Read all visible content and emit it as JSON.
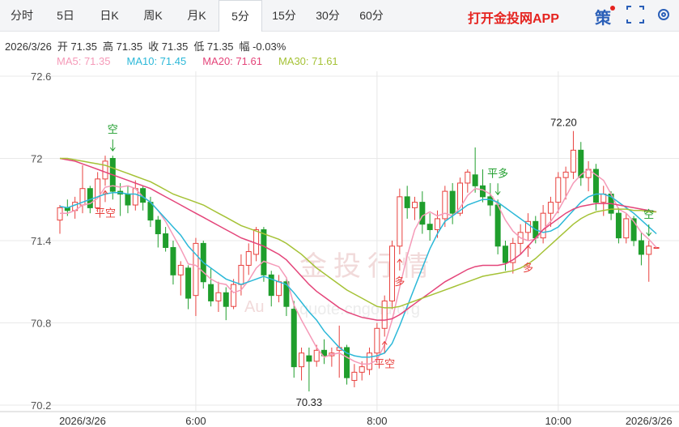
{
  "tabs": [
    "分时",
    "5日",
    "日K",
    "周K",
    "月K",
    "5分",
    "15分",
    "30分",
    "60分"
  ],
  "selected_tab": "5分",
  "app_link": "打开金投网APP",
  "toolbar_icon": "策",
  "info": [
    "2026/3/26",
    "开 71.35",
    "高 71.35",
    "收 71.35",
    "低 71.35",
    "幅 -0.03%"
  ],
  "watermark": [
    "金投行情",
    "Au",
    "quote.cngold.org"
  ],
  "chart_data": {
    "type": "candlestick",
    "categories": [
      null,
      null,
      null,
      "2026/3/26",
      null,
      null,
      null,
      null,
      null,
      null,
      null,
      null,
      null,
      null,
      null,
      null,
      null,
      null,
      "6:00",
      null,
      null,
      null,
      null,
      null,
      null,
      null,
      null,
      null,
      null,
      null,
      null,
      null,
      null,
      null,
      null,
      null,
      null,
      null,
      null,
      null,
      null,
      null,
      "8:00",
      null,
      null,
      null,
      null,
      null,
      null,
      null,
      null,
      null,
      null,
      null,
      null,
      null,
      null,
      null,
      null,
      null,
      null,
      null,
      null,
      null,
      null,
      null,
      "10:00",
      null,
      null,
      null,
      null,
      null,
      null,
      null,
      null,
      null,
      null,
      null,
      "2026/3/26",
      null
    ],
    "open": [
      71.55,
      71.64,
      71.62,
      71.66,
      71.78,
      71.64,
      71.85,
      72.0,
      71.76,
      71.74,
      71.66,
      71.78,
      71.68,
      71.55,
      71.45,
      71.35,
      71.15,
      71.2,
      71.0,
      71.38,
      71.08,
      70.96,
      71.02,
      70.92,
      71.08,
      71.22,
      71.3,
      71.48,
      71.15,
      71.0,
      71.1,
      70.9,
      70.48,
      70.56,
      70.52,
      70.6,
      70.56,
      70.6,
      70.62,
      70.38,
      70.44,
      70.46,
      70.58,
      70.76,
      70.96,
      71.36,
      71.72,
      71.64,
      71.68,
      71.52,
      71.48,
      71.56,
      71.76,
      71.6,
      71.82,
      71.88,
      71.8,
      71.72,
      71.66,
      71.36,
      71.24,
      71.38,
      71.46,
      71.54,
      71.42,
      71.6,
      71.68,
      71.86,
      71.9,
      72.06,
      71.86,
      71.92,
      71.68,
      71.74,
      71.6,
      71.42,
      71.56,
      71.4,
      71.3,
      71.35
    ],
    "high": [
      71.66,
      71.7,
      71.72,
      71.95,
      71.8,
      71.9,
      72.02,
      72.02,
      71.82,
      71.8,
      71.84,
      71.8,
      71.72,
      71.58,
      71.5,
      71.4,
      71.25,
      71.22,
      71.42,
      71.4,
      71.2,
      71.1,
      71.06,
      71.12,
      71.3,
      71.38,
      71.5,
      71.5,
      71.18,
      71.15,
      71.12,
      70.96,
      70.62,
      70.62,
      70.64,
      70.68,
      70.62,
      70.78,
      70.64,
      70.5,
      70.52,
      70.62,
      70.8,
      71.0,
      71.4,
      71.78,
      71.8,
      71.72,
      71.76,
      71.6,
      71.62,
      71.8,
      71.82,
      71.86,
      71.92,
      72.08,
      71.92,
      71.82,
      71.7,
      71.4,
      71.42,
      71.52,
      71.6,
      71.58,
      71.66,
      71.72,
      71.9,
      71.94,
      72.2,
      72.12,
      71.98,
      71.96,
      71.8,
      71.76,
      71.64,
      71.6,
      71.58,
      71.46,
      71.4,
      71.35
    ],
    "low": [
      71.45,
      71.58,
      71.56,
      71.6,
      71.6,
      71.62,
      71.8,
      71.7,
      71.58,
      71.6,
      71.62,
      71.62,
      71.5,
      71.35,
      71.32,
      71.08,
      71.0,
      70.9,
      70.85,
      71.05,
      70.92,
      70.88,
      70.82,
      70.9,
      71.0,
      71.15,
      71.25,
      71.1,
      70.92,
      70.95,
      70.85,
      70.4,
      70.38,
      70.3,
      70.48,
      70.5,
      70.48,
      70.4,
      70.35,
      70.33,
      70.38,
      70.42,
      70.52,
      70.7,
      70.9,
      71.3,
      71.56,
      71.55,
      71.45,
      71.4,
      71.42,
      71.5,
      71.52,
      71.58,
      71.75,
      71.75,
      71.68,
      71.58,
      71.3,
      71.18,
      71.16,
      71.3,
      71.4,
      71.38,
      71.38,
      71.5,
      71.6,
      71.7,
      71.85,
      71.8,
      71.76,
      71.62,
      71.58,
      71.55,
      71.38,
      71.38,
      71.36,
      71.22,
      71.1,
      71.35
    ],
    "close": [
      71.64,
      71.62,
      71.68,
      71.78,
      71.64,
      71.85,
      71.98,
      71.76,
      71.74,
      71.66,
      71.78,
      71.68,
      71.55,
      71.45,
      71.35,
      71.15,
      71.22,
      70.98,
      71.38,
      71.1,
      70.96,
      71.02,
      70.92,
      71.08,
      71.22,
      71.32,
      71.48,
      71.15,
      71.0,
      71.1,
      70.92,
      70.48,
      70.58,
      70.52,
      70.6,
      70.56,
      70.58,
      70.62,
      70.4,
      70.44,
      70.48,
      70.58,
      70.76,
      70.96,
      71.36,
      71.72,
      71.64,
      71.68,
      71.52,
      71.48,
      71.56,
      71.76,
      71.6,
      71.82,
      71.9,
      71.8,
      71.72,
      71.66,
      71.36,
      71.24,
      71.38,
      71.46,
      71.54,
      71.42,
      71.6,
      71.68,
      71.86,
      71.9,
      72.06,
      71.86,
      71.92,
      71.68,
      71.74,
      71.6,
      71.42,
      71.56,
      71.4,
      71.3,
      71.36,
      71.35
    ],
    "up_color": "#e8413e",
    "down_color": "#1f9e2c",
    "series": [
      {
        "label": "MA5: 71.35",
        "color": "#f59ab8",
        "values": [
          71.6,
          71.6,
          71.62,
          71.66,
          71.67,
          71.71,
          71.79,
          71.8,
          71.79,
          71.8,
          71.78,
          71.72,
          71.68,
          71.62,
          71.54,
          71.44,
          71.34,
          71.23,
          71.22,
          71.17,
          71.12,
          71.09,
          71.08,
          71.02,
          71.04,
          71.11,
          71.2,
          71.25,
          71.23,
          71.21,
          71.13,
          70.93,
          70.82,
          70.72,
          70.62,
          70.55,
          70.57,
          70.58,
          70.55,
          70.52,
          70.5,
          70.5,
          70.53,
          70.64,
          70.82,
          71.06,
          71.29,
          71.48,
          71.58,
          71.61,
          71.58,
          71.6,
          71.58,
          71.64,
          71.73,
          71.78,
          71.77,
          71.74,
          71.66,
          71.55,
          71.47,
          71.42,
          71.4,
          71.41,
          71.48,
          71.54,
          71.62,
          71.72,
          71.82,
          71.88,
          71.92,
          71.88,
          71.84,
          71.74,
          71.63,
          71.6,
          71.54,
          71.46,
          71.41,
          71.35
        ]
      },
      {
        "label": "MA10: 71.45",
        "color": "#2bb8d8",
        "values": [
          71.65,
          71.64,
          71.66,
          71.68,
          71.7,
          71.72,
          71.74,
          71.75,
          71.75,
          71.74,
          71.74,
          71.72,
          71.68,
          71.62,
          71.56,
          71.5,
          71.44,
          71.36,
          71.3,
          71.24,
          71.2,
          71.16,
          71.12,
          71.1,
          71.08,
          71.1,
          71.12,
          71.14,
          71.12,
          71.1,
          71.08,
          71.02,
          70.95,
          70.88,
          70.82,
          70.74,
          70.68,
          70.62,
          70.58,
          70.56,
          70.55,
          70.55,
          70.56,
          70.58,
          70.65,
          70.78,
          70.92,
          71.06,
          71.2,
          71.34,
          71.45,
          71.54,
          71.58,
          71.62,
          71.66,
          71.68,
          71.7,
          71.7,
          71.68,
          71.64,
          71.6,
          71.56,
          71.52,
          71.48,
          71.46,
          71.47,
          71.5,
          71.56,
          71.62,
          71.68,
          71.72,
          71.74,
          71.74,
          71.72,
          71.68,
          71.64,
          71.6,
          71.55,
          71.5,
          71.45
        ]
      },
      {
        "label": "MA20: 71.61",
        "color": "#e4457a",
        "values": [
          72.0,
          71.99,
          71.98,
          71.96,
          71.94,
          71.92,
          71.9,
          71.88,
          71.86,
          71.84,
          71.82,
          71.8,
          71.78,
          71.75,
          71.72,
          71.69,
          71.66,
          71.63,
          71.6,
          71.57,
          71.54,
          71.51,
          71.48,
          71.45,
          71.42,
          71.4,
          71.38,
          71.36,
          71.33,
          71.3,
          71.26,
          71.2,
          71.14,
          71.08,
          71.03,
          70.99,
          70.95,
          70.91,
          70.88,
          70.86,
          70.84,
          70.83,
          70.82,
          70.82,
          70.83,
          70.86,
          70.9,
          70.94,
          70.98,
          71.02,
          71.06,
          71.1,
          71.13,
          71.16,
          71.19,
          71.21,
          71.22,
          71.22,
          71.22,
          71.23,
          71.26,
          71.3,
          71.36,
          71.42,
          71.48,
          71.52,
          71.56,
          71.6,
          71.63,
          71.65,
          71.66,
          71.67,
          71.67,
          71.67,
          71.66,
          71.65,
          71.64,
          71.63,
          71.62,
          71.61
        ]
      },
      {
        "label": "MA30: 71.61",
        "color": "#a5c236",
        "values": [
          72.0,
          72.0,
          71.99,
          71.98,
          71.97,
          71.96,
          71.95,
          71.93,
          71.91,
          71.89,
          71.87,
          71.85,
          71.83,
          71.8,
          71.77,
          71.74,
          71.72,
          71.7,
          71.68,
          71.66,
          71.63,
          71.6,
          71.57,
          71.54,
          71.51,
          71.49,
          71.47,
          71.45,
          71.43,
          71.41,
          71.38,
          71.34,
          71.3,
          71.25,
          71.2,
          71.16,
          71.12,
          71.08,
          71.04,
          71.01,
          70.98,
          70.95,
          70.92,
          70.91,
          70.91,
          70.92,
          70.94,
          70.96,
          70.98,
          71.0,
          71.02,
          71.04,
          71.06,
          71.08,
          71.1,
          71.12,
          71.14,
          71.15,
          71.16,
          71.17,
          71.18,
          71.2,
          71.23,
          71.27,
          71.32,
          71.37,
          71.42,
          71.47,
          71.52,
          71.56,
          71.59,
          71.61,
          71.62,
          71.63,
          71.63,
          71.63,
          71.62,
          71.62,
          71.61,
          71.61
        ]
      }
    ],
    "sell_signals": [
      null,
      null,
      null,
      null,
      null,
      null,
      null,
      "空",
      null,
      null,
      null,
      null,
      null,
      null,
      null,
      null,
      null,
      null,
      null,
      null,
      null,
      null,
      null,
      null,
      null,
      null,
      null,
      null,
      null,
      null,
      null,
      null,
      null,
      null,
      null,
      null,
      null,
      null,
      null,
      null,
      null,
      null,
      null,
      null,
      null,
      null,
      null,
      null,
      null,
      null,
      null,
      null,
      null,
      null,
      null,
      null,
      null,
      null,
      "平多",
      null,
      null,
      null,
      null,
      null,
      null,
      null,
      null,
      null,
      null,
      null,
      null,
      null,
      null,
      null,
      null,
      null,
      null,
      null,
      "空",
      null
    ],
    "buy_signals": [
      null,
      null,
      null,
      null,
      null,
      null,
      "平空",
      null,
      null,
      null,
      null,
      null,
      null,
      null,
      null,
      null,
      null,
      null,
      null,
      null,
      null,
      null,
      null,
      null,
      null,
      null,
      null,
      null,
      null,
      null,
      null,
      null,
      null,
      null,
      null,
      null,
      null,
      null,
      null,
      null,
      null,
      null,
      null,
      "平空",
      null,
      "多",
      null,
      null,
      null,
      null,
      null,
      null,
      null,
      null,
      null,
      null,
      null,
      null,
      null,
      null,
      null,
      null,
      "多",
      null,
      null,
      null,
      null,
      null,
      null,
      null,
      null,
      null,
      null,
      null,
      null,
      null,
      null,
      null,
      null,
      null
    ],
    "high_label": "72.20",
    "low_label": "70.33",
    "ylim": [
      70.2,
      72.6
    ],
    "yticks": [
      72.6,
      72,
      71.4,
      70.8,
      70.2
    ],
    "grid": true
  }
}
